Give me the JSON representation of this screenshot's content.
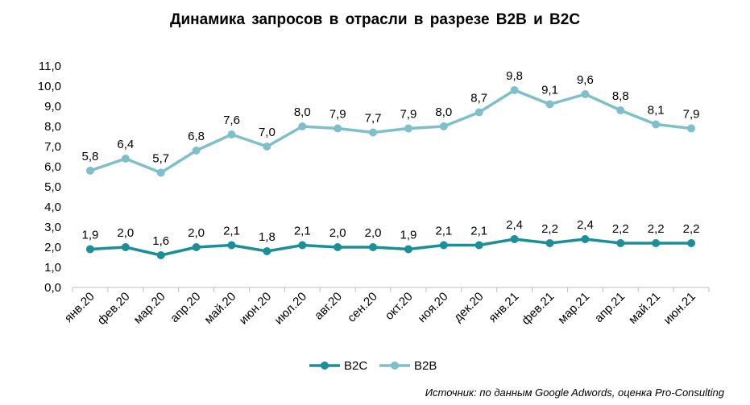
{
  "title": "Динамика запросов в отрасли в разрезе B2B и B2C",
  "source": "Источник: по данным Google Adwords, оценка Pro-Consulting",
  "chart_data": {
    "type": "line",
    "title": "Динамика запросов в отрасли в разрезе B2B и B2C",
    "categories": [
      "янв.20",
      "фев.20",
      "мар.20",
      "апр.20",
      "май.20",
      "июн.20",
      "июл.20",
      "авг.20",
      "сен.20",
      "окт.20",
      "ноя.20",
      "дек.20",
      "янв.21",
      "фев.21",
      "мар.21",
      "апр.21",
      "май.21",
      "июн.21"
    ],
    "series": [
      {
        "name": "B2C",
        "color": "#1a8f98",
        "values": [
          1.9,
          2.0,
          1.6,
          2.0,
          2.1,
          1.8,
          2.1,
          2.0,
          2.0,
          1.9,
          2.1,
          2.1,
          2.4,
          2.2,
          2.4,
          2.2,
          2.2,
          2.2
        ],
        "labels": [
          "1,9",
          "2,0",
          "1,6",
          "2,0",
          "2,1",
          "1,8",
          "2,1",
          "2,0",
          "2,0",
          "1,9",
          "2,1",
          "2,1",
          "2,4",
          "2,2",
          "2,4",
          "2,2",
          "2,2",
          "2,2"
        ]
      },
      {
        "name": "B2B",
        "color": "#7fbfca",
        "values": [
          5.8,
          6.4,
          5.7,
          6.8,
          7.6,
          7.0,
          8.0,
          7.9,
          7.7,
          7.9,
          8.0,
          8.7,
          9.8,
          9.1,
          9.6,
          8.8,
          8.1,
          7.9
        ],
        "labels": [
          "5,8",
          "6,4",
          "5,7",
          "6,8",
          "7,6",
          "7,0",
          "8,0",
          "7,9",
          "7,7",
          "7,9",
          "8,0",
          "8,7",
          "9,8",
          "9,1",
          "9,6",
          "8,8",
          "8,1",
          "7,9"
        ]
      }
    ],
    "ylim": [
      0,
      11
    ],
    "yticks": [
      0,
      1,
      2,
      3,
      4,
      5,
      6,
      7,
      8,
      9,
      10,
      11
    ],
    "ytick_labels": [
      "0,0",
      "1,0",
      "2,0",
      "3,0",
      "4,0",
      "5,0",
      "6,0",
      "7,0",
      "8,0",
      "9,0",
      "10,0",
      "11,0"
    ],
    "xlabel": "",
    "ylabel": "",
    "grid": false,
    "legend_position": "bottom-center",
    "axis_color": "#bfbfbf"
  }
}
